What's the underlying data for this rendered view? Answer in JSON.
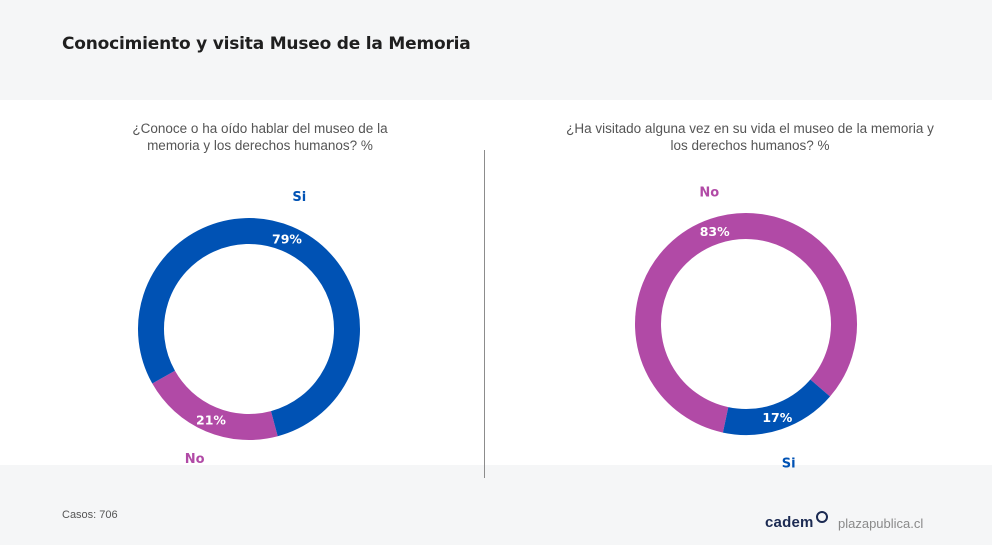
{
  "title": "Conocimiento y visita Museo de la Memoria",
  "colors": {
    "si": "#0052b4",
    "no": "#b14aa6",
    "label_inside": "#ffffff"
  },
  "chart_data": [
    {
      "type": "pie",
      "donut": true,
      "title": "¿Conoce o ha oído hablar del museo de la memoria y los derechos humanos? %",
      "title_lines": [
        "¿Conoce o ha oído hablar del museo de la",
        "memoria y los derechos humanos? %"
      ],
      "slices": [
        {
          "name": "No",
          "value": 21,
          "label": "21%",
          "color": "#b14aa6"
        },
        {
          "name": "Si",
          "value": 79,
          "label": "79%",
          "color": "#0052b4"
        }
      ]
    },
    {
      "type": "pie",
      "donut": true,
      "title": "¿Ha visitado alguna vez en su vida el museo de la memoria y los derechos humanos? %",
      "title_lines": [
        "¿Ha visitado alguna vez en su vida el museo de la memoria y",
        "los derechos humanos? %"
      ],
      "slices": [
        {
          "name": "No",
          "value": 83,
          "label": "83%",
          "color": "#b14aa6"
        },
        {
          "name": "Si",
          "value": 17,
          "label": "17%",
          "color": "#0052b4"
        }
      ]
    }
  ],
  "footer": {
    "cases": "Casos: 706",
    "brand": "cadem",
    "site": "plazapublica.cl"
  }
}
